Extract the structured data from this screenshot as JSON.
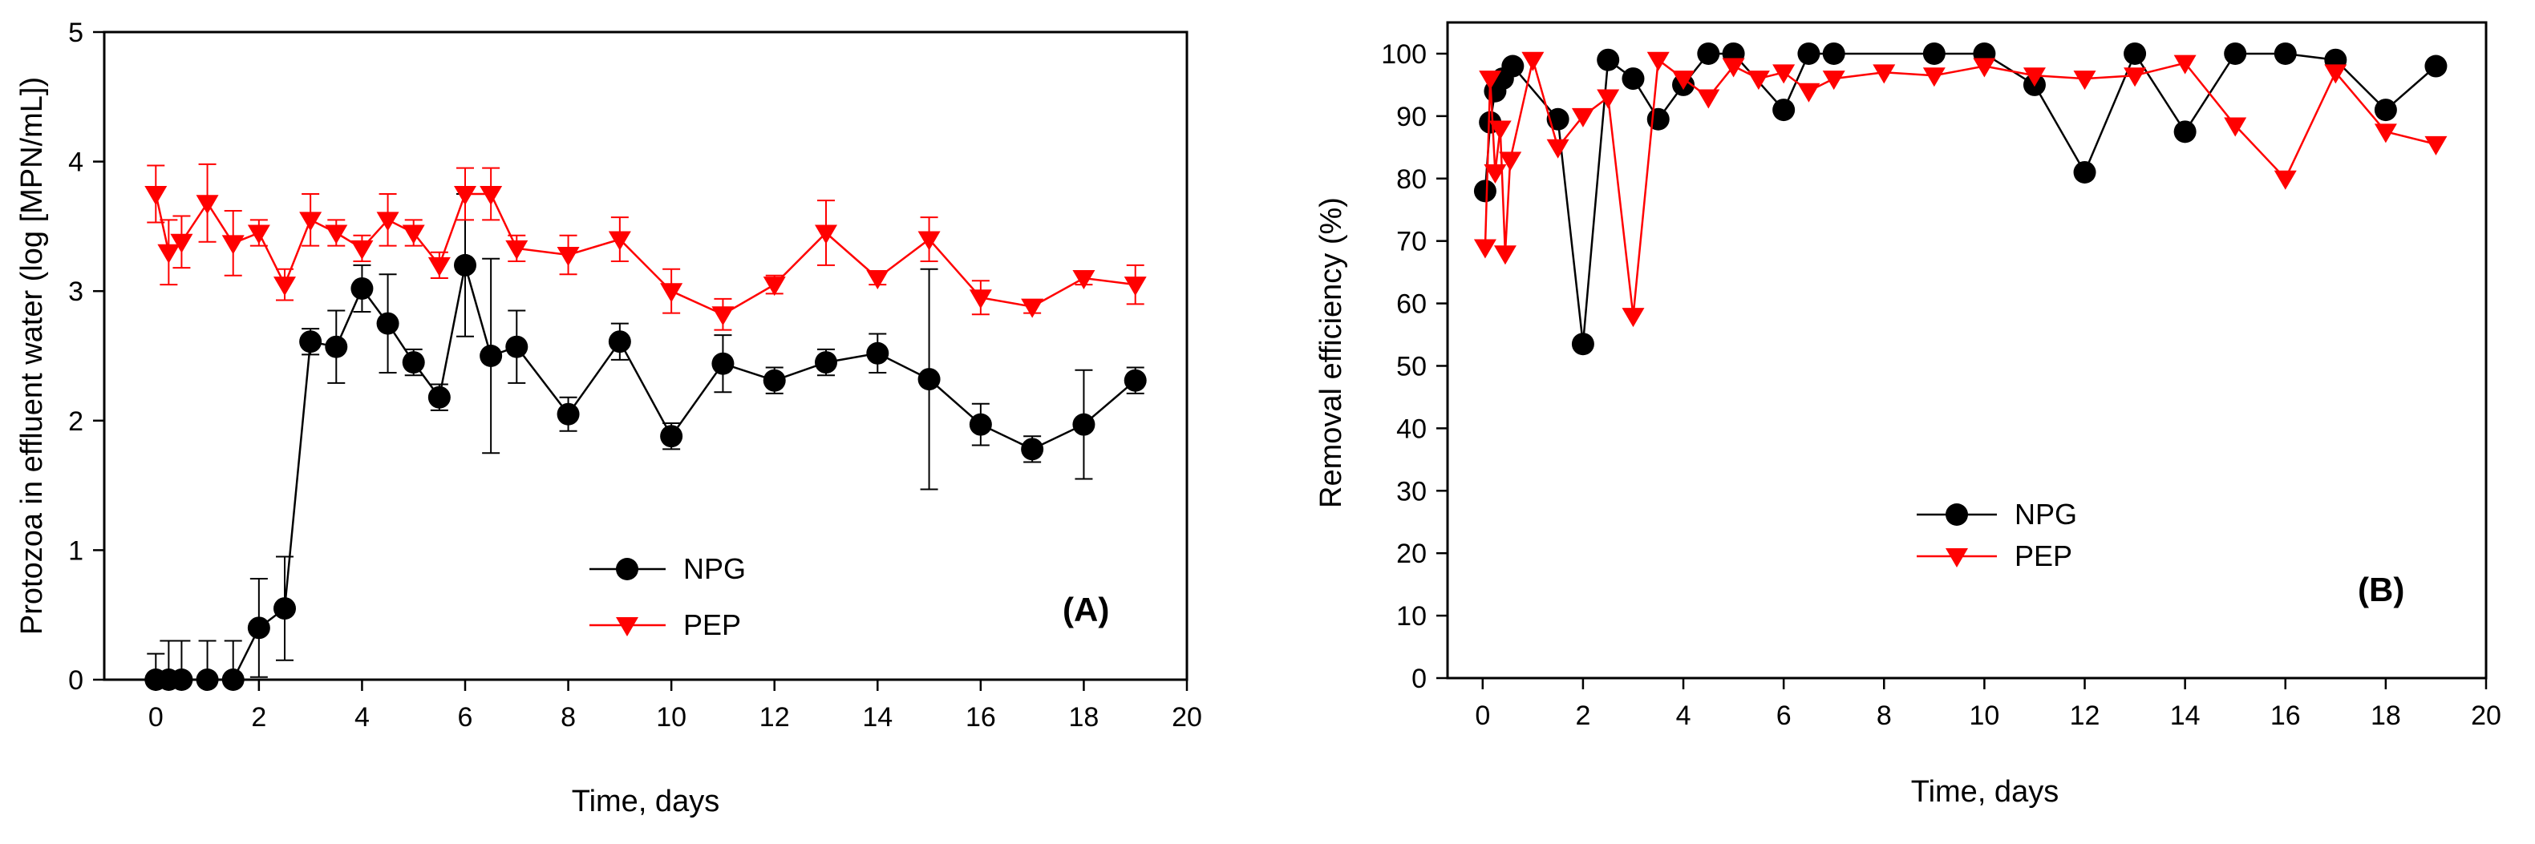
{
  "chart_data": [
    {
      "type": "line",
      "panel_label": "(A)",
      "xlabel": "Time, days",
      "ylabel": "Protozoa in effluent water (log [MPN/mL])",
      "xlim": [
        -1,
        20
      ],
      "ylim": [
        0,
        5
      ],
      "xticks": [
        0,
        2,
        4,
        6,
        8,
        10,
        12,
        14,
        16,
        18,
        20
      ],
      "yticks": [
        0,
        1,
        2,
        3,
        4,
        5
      ],
      "legend_position": "lower-center",
      "series": [
        {
          "name": "NPG",
          "color": "#000000",
          "marker": "circle",
          "points": [
            {
              "x": 0,
              "y": 0,
              "err": 0.2
            },
            {
              "x": 0.25,
              "y": 0,
              "err": 0.3
            },
            {
              "x": 0.5,
              "y": 0,
              "err": 0.3
            },
            {
              "x": 1,
              "y": 0,
              "err": 0.3
            },
            {
              "x": 1.5,
              "y": 0,
              "err": 0.3
            },
            {
              "x": 2,
              "y": 0.4,
              "err": 0.38
            },
            {
              "x": 2.5,
              "y": 0.55,
              "err": 0.4
            },
            {
              "x": 3,
              "y": 2.61,
              "err": 0.1
            },
            {
              "x": 3.5,
              "y": 2.57,
              "err": 0.28
            },
            {
              "x": 4,
              "y": 3.02,
              "err": 0.18
            },
            {
              "x": 4.5,
              "y": 2.75,
              "err": 0.38
            },
            {
              "x": 5,
              "y": 2.45,
              "err": 0.1
            },
            {
              "x": 5.5,
              "y": 2.18,
              "err": 0.1
            },
            {
              "x": 6,
              "y": 3.2,
              "err": 0.55
            },
            {
              "x": 6.5,
              "y": 2.5,
              "err": 0.75
            },
            {
              "x": 7,
              "y": 2.57,
              "err": 0.28
            },
            {
              "x": 8,
              "y": 2.05,
              "err": 0.13
            },
            {
              "x": 9,
              "y": 2.61,
              "err": 0.14
            },
            {
              "x": 10,
              "y": 1.88,
              "err": 0.1
            },
            {
              "x": 11,
              "y": 2.44,
              "err": 0.22
            },
            {
              "x": 12,
              "y": 2.31,
              "err": 0.1
            },
            {
              "x": 13,
              "y": 2.45,
              "err": 0.1
            },
            {
              "x": 14,
              "y": 2.52,
              "err": 0.15
            },
            {
              "x": 15,
              "y": 2.32,
              "err": 0.85
            },
            {
              "x": 16,
              "y": 1.97,
              "err": 0.16
            },
            {
              "x": 17,
              "y": 1.78,
              "err": 0.1
            },
            {
              "x": 18,
              "y": 1.97,
              "err": 0.42
            },
            {
              "x": 19,
              "y": 2.31,
              "err": 0.1
            }
          ]
        },
        {
          "name": "PEP",
          "color": "#ff0000",
          "marker": "triangle-down",
          "points": [
            {
              "x": 0,
              "y": 3.75,
              "err": 0.22
            },
            {
              "x": 0.25,
              "y": 3.3,
              "err": 0.25
            },
            {
              "x": 0.5,
              "y": 3.38,
              "err": 0.2
            },
            {
              "x": 1,
              "y": 3.68,
              "err": 0.3
            },
            {
              "x": 1.5,
              "y": 3.37,
              "err": 0.25
            },
            {
              "x": 2,
              "y": 3.45,
              "err": 0.1
            },
            {
              "x": 2.5,
              "y": 3.05,
              "err": 0.12
            },
            {
              "x": 3,
              "y": 3.55,
              "err": 0.2
            },
            {
              "x": 3.5,
              "y": 3.45,
              "err": 0.1
            },
            {
              "x": 4,
              "y": 3.33,
              "err": 0.1
            },
            {
              "x": 4.5,
              "y": 3.55,
              "err": 0.2
            },
            {
              "x": 5,
              "y": 3.45,
              "err": 0.1
            },
            {
              "x": 5.5,
              "y": 3.2,
              "err": 0.1
            },
            {
              "x": 6,
              "y": 3.75,
              "err": 0.2
            },
            {
              "x": 6.5,
              "y": 3.75,
              "err": 0.2
            },
            {
              "x": 7,
              "y": 3.33,
              "err": 0.1
            },
            {
              "x": 8,
              "y": 3.28,
              "err": 0.15
            },
            {
              "x": 9,
              "y": 3.4,
              "err": 0.17
            },
            {
              "x": 10,
              "y": 3.0,
              "err": 0.17
            },
            {
              "x": 11,
              "y": 2.82,
              "err": 0.12
            },
            {
              "x": 12,
              "y": 3.05,
              "err": 0.07
            },
            {
              "x": 13,
              "y": 3.45,
              "err": 0.25
            },
            {
              "x": 14,
              "y": 3.1,
              "err": 0.05
            },
            {
              "x": 15,
              "y": 3.4,
              "err": 0.17
            },
            {
              "x": 16,
              "y": 2.95,
              "err": 0.13
            },
            {
              "x": 17,
              "y": 2.88,
              "err": 0.05
            },
            {
              "x": 18,
              "y": 3.1,
              "err": 0.05
            },
            {
              "x": 19,
              "y": 3.05,
              "err": 0.15
            }
          ]
        }
      ]
    },
    {
      "type": "line",
      "panel_label": "(B)",
      "xlabel": "Time, days",
      "ylabel": "Removal efficiency (%)",
      "xlim": [
        -0.7,
        20
      ],
      "ylim": [
        0,
        105
      ],
      "xticks": [
        0,
        2,
        4,
        6,
        8,
        10,
        12,
        14,
        16,
        18,
        20
      ],
      "yticks": [
        0,
        10,
        20,
        30,
        40,
        50,
        60,
        70,
        80,
        90,
        100
      ],
      "legend_position": "center-left",
      "series": [
        {
          "name": "NPG",
          "color": "#000000",
          "marker": "circle",
          "points": [
            {
              "x": 0.05,
              "y": 78
            },
            {
              "x": 0.15,
              "y": 89
            },
            {
              "x": 0.25,
              "y": 94
            },
            {
              "x": 0.4,
              "y": 96
            },
            {
              "x": 0.6,
              "y": 98
            },
            {
              "x": 1.5,
              "y": 89.5
            },
            {
              "x": 2,
              "y": 53.5
            },
            {
              "x": 2.5,
              "y": 99
            },
            {
              "x": 3,
              "y": 96
            },
            {
              "x": 3.5,
              "y": 89.5
            },
            {
              "x": 4,
              "y": 95
            },
            {
              "x": 4.5,
              "y": 100
            },
            {
              "x": 5,
              "y": 100
            },
            {
              "x": 6,
              "y": 91
            },
            {
              "x": 6.5,
              "y": 100
            },
            {
              "x": 7,
              "y": 100
            },
            {
              "x": 9,
              "y": 100
            },
            {
              "x": 10,
              "y": 100
            },
            {
              "x": 11,
              "y": 95
            },
            {
              "x": 12,
              "y": 81
            },
            {
              "x": 13,
              "y": 100
            },
            {
              "x": 14,
              "y": 87.5
            },
            {
              "x": 15,
              "y": 100
            },
            {
              "x": 16,
              "y": 100
            },
            {
              "x": 17,
              "y": 99
            },
            {
              "x": 18,
              "y": 91
            },
            {
              "x": 19,
              "y": 98
            }
          ]
        },
        {
          "name": "PEP",
          "color": "#ff0000",
          "marker": "triangle-down",
          "points": [
            {
              "x": 0.05,
              "y": 69
            },
            {
              "x": 0.15,
              "y": 96
            },
            {
              "x": 0.25,
              "y": 81
            },
            {
              "x": 0.35,
              "y": 88
            },
            {
              "x": 0.45,
              "y": 68
            },
            {
              "x": 0.55,
              "y": 83
            },
            {
              "x": 1,
              "y": 99
            },
            {
              "x": 1.5,
              "y": 85
            },
            {
              "x": 2,
              "y": 90
            },
            {
              "x": 2.5,
              "y": 93
            },
            {
              "x": 3,
              "y": 58
            },
            {
              "x": 3.5,
              "y": 99
            },
            {
              "x": 4,
              "y": 96
            },
            {
              "x": 4.5,
              "y": 93
            },
            {
              "x": 5,
              "y": 98
            },
            {
              "x": 5.5,
              "y": 96
            },
            {
              "x": 6,
              "y": 97
            },
            {
              "x": 6.5,
              "y": 94
            },
            {
              "x": 7,
              "y": 96
            },
            {
              "x": 8,
              "y": 97
            },
            {
              "x": 9,
              "y": 96.5
            },
            {
              "x": 10,
              "y": 98
            },
            {
              "x": 11,
              "y": 96.5
            },
            {
              "x": 12,
              "y": 96
            },
            {
              "x": 13,
              "y": 96.5
            },
            {
              "x": 14,
              "y": 98.5
            },
            {
              "x": 15,
              "y": 88.5
            },
            {
              "x": 16,
              "y": 80
            },
            {
              "x": 17,
              "y": 97
            },
            {
              "x": 18,
              "y": 87.5
            },
            {
              "x": 19,
              "y": 85.5
            }
          ]
        }
      ]
    }
  ]
}
